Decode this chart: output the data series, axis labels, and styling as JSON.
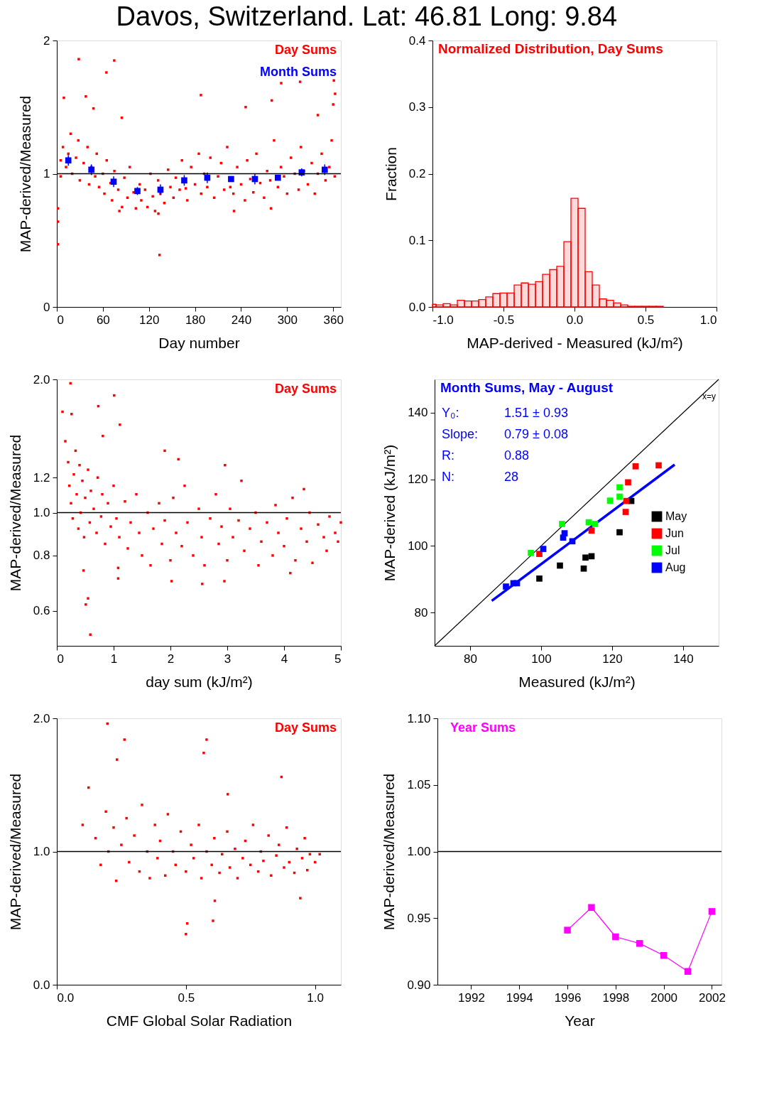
{
  "chart_data": [
    {
      "type": "scatter",
      "title": "Davos, Switzerland. Lat: 46.81 Long: 9.84",
      "xlabel": "Day number",
      "ylabel": "MAP-derived/Measured",
      "xlim": [
        0,
        370
      ],
      "ylim": [
        0,
        2
      ],
      "xticks": [
        0,
        60,
        120,
        180,
        240,
        300,
        360
      ],
      "yticks": [
        0,
        1,
        2
      ],
      "legend": "top right",
      "marker": "square",
      "ref_lines": [
        {
          "axis": "y",
          "value": 1,
          "color": "#000000"
        }
      ],
      "series": [
        {
          "name": "Day Sums",
          "color": "#ff0000",
          "x": [
            5,
            5,
            8,
            12,
            15,
            18,
            20,
            25,
            28,
            30,
            35,
            40,
            42,
            45,
            50,
            52,
            55,
            60,
            62,
            65,
            70,
            72,
            75,
            80,
            85,
            88,
            92,
            95,
            100,
            103,
            108,
            110,
            115,
            118,
            122,
            125,
            128,
            132,
            135,
            140,
            145,
            148,
            152,
            155,
            160,
            163,
            168,
            170,
            175,
            180,
            185,
            188,
            192,
            196,
            200,
            205,
            210,
            214,
            218,
            222,
            226,
            230,
            235,
            240,
            245,
            248,
            252,
            256,
            260,
            265,
            270,
            274,
            278,
            283,
            288,
            292,
            296,
            300,
            305,
            310,
            315,
            318,
            322,
            327,
            332,
            336,
            340,
            345,
            350,
            355,
            358,
            362,
            28.6,
            74.8,
            64.6,
            9.2,
            37.8,
            187.7,
            292.3,
            316.9,
            360.9,
            362.5,
            280,
            133.8,
            1.5,
            1.5,
            1.5,
            246,
            340,
            360,
            84.6,
            47.7,
            81.5,
            230.8,
            279,
            132.3
          ],
          "values": [
            1.1,
            0.98,
            1.2,
            1.05,
            1.15,
            1.3,
            1.0,
            1.12,
            1.25,
            0.95,
            1.08,
            1.2,
            0.92,
            1.05,
            0.98,
            1.15,
            0.9,
            1.0,
            0.85,
            1.1,
            0.93,
            0.8,
            1.02,
            0.88,
            0.75,
            0.97,
            0.82,
            1.05,
            0.86,
            0.74,
            0.92,
            0.8,
            0.88,
            0.75,
            1.0,
            0.83,
            0.72,
            0.95,
            0.85,
            0.78,
            1.03,
            0.9,
            0.82,
            0.97,
            0.88,
            1.1,
            0.89,
            0.8,
            1.05,
            0.92,
            1.15,
            0.85,
            1.0,
            0.9,
            1.12,
            0.82,
            0.98,
            1.08,
            0.88,
            1.2,
            0.9,
            0.85,
            1.05,
            0.92,
            0.8,
            1.1,
            0.96,
            0.86,
            1.15,
            0.93,
            0.82,
            1.02,
            0.95,
            1.25,
            0.9,
            1.05,
            0.98,
            0.85,
            1.12,
            1.0,
            0.88,
            1.2,
            1.02,
            0.92,
            1.08,
            0.85,
            1.0,
            1.15,
            0.95,
            1.05,
            1.25,
            0.98,
            1.86,
            1.85,
            1.76,
            1.57,
            1.58,
            1.59,
            1.68,
            1.69,
            1.7,
            1.6,
            1.55,
            0.39,
            0.74,
            0.64,
            0.47,
            1.5,
            1.44,
            1.52,
            1.42,
            1.49,
            0.72,
            0.72,
            0.74,
            0.7
          ]
        },
        {
          "name": "Month Sums",
          "color": "#0000ff",
          "x": [
            15,
            45,
            74,
            105,
            135,
            166,
            196,
            227,
            258,
            288,
            319,
            349
          ],
          "values": [
            1.1,
            1.03,
            0.94,
            0.87,
            0.88,
            0.95,
            0.97,
            0.96,
            0.96,
            0.97,
            1.01,
            1.03
          ],
          "errors": [
            0.04,
            0.04,
            0.04,
            0.03,
            0.04,
            0.04,
            0.04,
            0.02,
            0.04,
            0.02,
            0.03,
            0.04
          ]
        }
      ]
    },
    {
      "type": "histogram",
      "title": "Normalized Distribution, Day Sums",
      "color": "#ff0000",
      "xlabel": "MAP-derived - Measured (kJ/m²)",
      "ylabel": "Fraction",
      "xlim": [
        -1.0,
        1.0
      ],
      "ylim": [
        0,
        0.4
      ],
      "xticks": [
        {
          "value": -1.0,
          "label": "-1.0"
        },
        {
          "value": -0.5,
          "label": "-0.5"
        },
        {
          "value": 0,
          "label": "0.0"
        },
        {
          "value": 0.5,
          "label": "0.5"
        },
        {
          "value": 1.0,
          "label": "1.0"
        }
      ],
      "yticks": [
        {
          "value": 0,
          "label": "0.0"
        },
        0.1,
        0.2,
        0.3,
        0.4
      ],
      "bins": [
        -1.0,
        -0.975,
        -0.925,
        -0.875,
        -0.825,
        -0.775,
        -0.725,
        -0.675,
        -0.625,
        -0.575,
        -0.525,
        -0.475,
        -0.425,
        -0.375,
        -0.325,
        -0.275,
        -0.225,
        -0.175,
        -0.125,
        -0.075,
        -0.025,
        0.025,
        0.075,
        0.125,
        0.175,
        0.225,
        0.275,
        0.325,
        0.375,
        0.425,
        0.475,
        0.525,
        0.575,
        0.625
      ],
      "values": [
        0.004,
        0.003,
        0.005,
        0.003,
        0.01,
        0.009,
        0.009,
        0.011,
        0.015,
        0.02,
        0.021,
        0.021,
        0.033,
        0.036,
        0.034,
        0.038,
        0.049,
        0.056,
        0.061,
        0.098,
        0.163,
        0.148,
        0.053,
        0.033,
        0.012,
        0.01,
        0.006,
        0.003,
        0.001,
        0.001,
        0.001,
        0.001,
        0.001
      ]
    },
    {
      "type": "scatter",
      "xlabel": "day sum (kJ/m²)",
      "ylabel": "MAP-derived/Measured",
      "xlim": [
        0,
        5
      ],
      "ylim": [
        0.5,
        2.0
      ],
      "log": "y",
      "xticks": [
        0,
        1,
        2,
        3,
        4,
        5
      ],
      "yticks": [
        0.6,
        0.8,
        {
          "value": 1.0,
          "label": "1.0"
        },
        1.2,
        {
          "value": 2.0,
          "label": "2.0"
        }
      ],
      "legend": "top right",
      "marker": "square",
      "ref_lines": [
        {
          "axis": "y",
          "value": 1.0,
          "color": "#000000"
        }
      ],
      "series": [
        {
          "name": "Day Sums",
          "color": "#ff0000",
          "x": [
            0.15,
            0.2,
            0.22,
            0.25,
            0.28,
            0.3,
            0.33,
            0.35,
            0.38,
            0.4,
            0.42,
            0.45,
            0.48,
            0.5,
            0.55,
            0.58,
            0.6,
            0.65,
            0.7,
            0.72,
            0.78,
            0.8,
            0.85,
            0.9,
            0.95,
            1.0,
            1.05,
            1.1,
            1.2,
            1.25,
            1.3,
            1.4,
            1.45,
            1.5,
            1.6,
            1.65,
            1.7,
            1.8,
            1.85,
            1.9,
            2.0,
            2.05,
            2.1,
            2.2,
            2.25,
            2.3,
            2.4,
            2.5,
            2.55,
            2.6,
            2.7,
            2.8,
            2.85,
            2.9,
            3.0,
            3.05,
            3.1,
            3.2,
            3.25,
            3.3,
            3.4,
            3.5,
            3.55,
            3.6,
            3.7,
            3.8,
            3.85,
            3.9,
            4.0,
            4.05,
            4.15,
            4.2,
            4.3,
            4.4,
            4.45,
            4.5,
            4.6,
            4.7,
            4.75,
            4.8,
            4.9,
            4.95,
            5.0,
            0.24,
            1.01,
            0.73,
            0.1,
            1.11,
            0.26,
            0.81,
            1.9,
            2.14,
            2.96,
            0.47,
            0.51,
            0.55,
            0.59,
            1.08,
            1.08,
            4.35,
            2.56,
            2.02,
            2.95,
            4.11
          ],
          "values": [
            1.45,
            1.3,
            1.15,
            1.05,
            0.97,
            1.22,
            1.38,
            1.1,
            0.92,
            1.28,
            1.0,
            1.18,
            0.88,
            1.08,
            1.25,
            0.95,
            1.12,
            1.02,
            0.9,
            1.2,
            0.98,
            1.1,
            0.85,
            1.05,
            0.93,
            1.15,
            0.97,
            0.88,
            1.06,
            0.83,
            0.95,
            1.1,
            0.9,
            0.8,
            1.0,
            0.76,
            0.92,
            1.05,
            0.85,
            0.96,
            0.78,
            1.08,
            0.9,
            0.84,
            1.15,
            0.95,
            0.8,
            1.02,
            0.88,
            0.76,
            0.97,
            1.1,
            0.85,
            0.93,
            0.78,
            1.02,
            0.88,
            0.96,
            1.18,
            0.82,
            0.92,
            1.0,
            0.76,
            0.86,
            0.95,
            0.8,
            1.04,
            0.9,
            0.84,
            0.97,
            1.08,
            0.78,
            0.92,
            0.86,
            1.0,
            0.77,
            0.94,
            0.88,
            0.82,
            0.98,
            0.9,
            0.86,
            0.95,
            1.96,
            1.84,
            1.74,
            1.69,
            1.58,
            1.67,
            1.49,
            1.38,
            1.32,
            1.28,
            0.74,
            0.62,
            0.64,
            0.53,
            0.75,
            0.71,
            1.13,
            0.69,
            0.7,
            0.7,
            0.73
          ]
        }
      ]
    },
    {
      "type": "scatter",
      "title": "Month Sums, May - August",
      "xlabel": "Measured (kJ/m²)",
      "ylabel": "MAP-derived (kJ/m²)",
      "xlim": [
        70,
        150
      ],
      "ylim": [
        70,
        150
      ],
      "xticks": [
        80,
        100,
        120,
        140
      ],
      "yticks": [
        80,
        100,
        120,
        140
      ],
      "legend": "right",
      "annotations": [
        "Y₀:",
        "1.51 ± 0.93",
        "Slope:",
        "0.79 ± 0.08",
        "R:",
        "0.88",
        "N:",
        "28"
      ],
      "series": [
        {
          "name": "x=y",
          "type": "line",
          "color": "#000000",
          "x": [
            70,
            150
          ],
          "values": [
            70,
            150
          ]
        },
        {
          "type": "line",
          "color": "#0000ff",
          "x": [
            86.1,
            137.6
          ],
          "values": [
            83.5,
            124.4
          ]
        },
        {
          "name": "May",
          "marker": "square",
          "color": "#000000",
          "x": [
            99.5,
            105.3,
            112.0,
            112.5,
            114.2,
            122.1,
            125.4
          ],
          "values": [
            90.2,
            94.1,
            93.2,
            96.5,
            96.9,
            104.1,
            113.5
          ]
        },
        {
          "name": "Jun",
          "marker": "square",
          "color": "#ff0000",
          "x": [
            99.5,
            114.2,
            123.8,
            124.0,
            124.5,
            126.6,
            133.1
          ],
          "values": [
            97.6,
            104.6,
            110.2,
            113.5,
            119.1,
            123.9,
            124.2
          ]
        },
        {
          "name": "Jul",
          "marker": "square",
          "color": "#00ff00",
          "x": [
            97.1,
            105.9,
            113.4,
            115.2,
            119.4,
            122.1,
            122.1
          ],
          "values": [
            97.9,
            106.6,
            107.1,
            106.6,
            113.6,
            114.8,
            117.6
          ]
        },
        {
          "name": "Aug",
          "marker": "square",
          "color": "#0000ff",
          "x": [
            90.1,
            92.2,
            93.2,
            100.6,
            106.2,
            106.6,
            108.8
          ],
          "values": [
            87.8,
            88.8,
            88.8,
            99.1,
            102.5,
            103.8,
            101.4
          ]
        }
      ]
    },
    {
      "type": "scatter",
      "xlabel": "CMF Global Solar Radiation",
      "ylabel": "MAP-derived/Measured",
      "xlim": [
        0,
        1.1
      ],
      "ylim": [
        0,
        2
      ],
      "xticks": [
        {
          "value": 0,
          "label": "0.0"
        },
        0.5,
        {
          "value": 1.0,
          "label": "1.0"
        }
      ],
      "yticks": [
        {
          "value": 0,
          "label": "0.0"
        },
        {
          "value": 1.0,
          "label": "1.0"
        },
        {
          "value": 2.0,
          "label": "2.0"
        }
      ],
      "legend": "top right",
      "marker": "square",
      "ref_lines": [
        {
          "axis": "y",
          "value": 1.0,
          "color": "#000000"
        }
      ],
      "series": [
        {
          "name": "Day Sums",
          "color": "#ff0000",
          "x": [
            0.15,
            0.17,
            0.19,
            0.2,
            0.22,
            0.23,
            0.25,
            0.27,
            0.28,
            0.3,
            0.32,
            0.33,
            0.35,
            0.36,
            0.38,
            0.39,
            0.4,
            0.42,
            0.43,
            0.45,
            0.46,
            0.48,
            0.5,
            0.52,
            0.53,
            0.55,
            0.56,
            0.58,
            0.6,
            0.61,
            0.63,
            0.64,
            0.66,
            0.67,
            0.69,
            0.7,
            0.72,
            0.73,
            0.75,
            0.76,
            0.78,
            0.79,
            0.8,
            0.82,
            0.83,
            0.85,
            0.86,
            0.88,
            0.89,
            0.9,
            0.92,
            0.93,
            0.95,
            0.96,
            0.97,
            0.98,
            1.0,
            0.196,
            0.262,
            0.58,
            0.569,
            0.233,
            0.87,
            0.1,
            0.123,
            0.5,
            0.505,
            0.605,
            0.612,
            0.943,
            0.662,
            1.018
          ],
          "values": [
            1.1,
            0.9,
            1.3,
            1.0,
            1.18,
            0.78,
            1.05,
            1.25,
            0.92,
            1.12,
            0.85,
            1.35,
            1.0,
            0.8,
            1.2,
            0.95,
            1.08,
            0.82,
            1.28,
            1.0,
            0.9,
            1.15,
            0.85,
            1.05,
            0.95,
            1.2,
            0.8,
            1.0,
            0.9,
            1.1,
            0.84,
            0.98,
            1.15,
            0.88,
            1.02,
            0.8,
            0.95,
            1.08,
            0.9,
            1.2,
            0.85,
            1.0,
            0.93,
            1.12,
            0.82,
            0.97,
            1.05,
            0.88,
            1.18,
            0.92,
            0.84,
            1.02,
            0.95,
            1.1,
            0.86,
            0.98,
            0.92,
            1.96,
            1.84,
            1.84,
            1.74,
            1.69,
            1.56,
            1.2,
            1.48,
            0.38,
            0.46,
            0.48,
            0.63,
            0.65,
            1.43,
            0.98
          ]
        }
      ]
    },
    {
      "type": "line",
      "xlabel": "Year",
      "ylabel": "MAP-derived/Measured",
      "xlim": [
        1990.6,
        2002.4
      ],
      "ylim": [
        0.9,
        1.1
      ],
      "xticks": [
        1992,
        1994,
        1996,
        1998,
        2000,
        2002
      ],
      "yticks": [
        {
          "value": 0.9,
          "label": "0.90"
        },
        {
          "value": 0.95,
          "label": "0.95"
        },
        {
          "value": 1.0,
          "label": "1.00"
        },
        {
          "value": 1.05,
          "label": "1.05"
        },
        {
          "value": 1.1,
          "label": "1.10"
        }
      ],
      "legend": "top left",
      "marker": "square",
      "ref_lines": [
        {
          "axis": "y",
          "value": 1.0,
          "color": "#000000"
        }
      ],
      "series": [
        {
          "name": "Year Sums",
          "color": "#ff00ff",
          "x": [
            1996,
            1997,
            1998,
            1999,
            2000,
            2001,
            2002
          ],
          "values": [
            0.941,
            0.958,
            0.936,
            0.931,
            0.922,
            0.91,
            0.955
          ]
        }
      ]
    }
  ]
}
